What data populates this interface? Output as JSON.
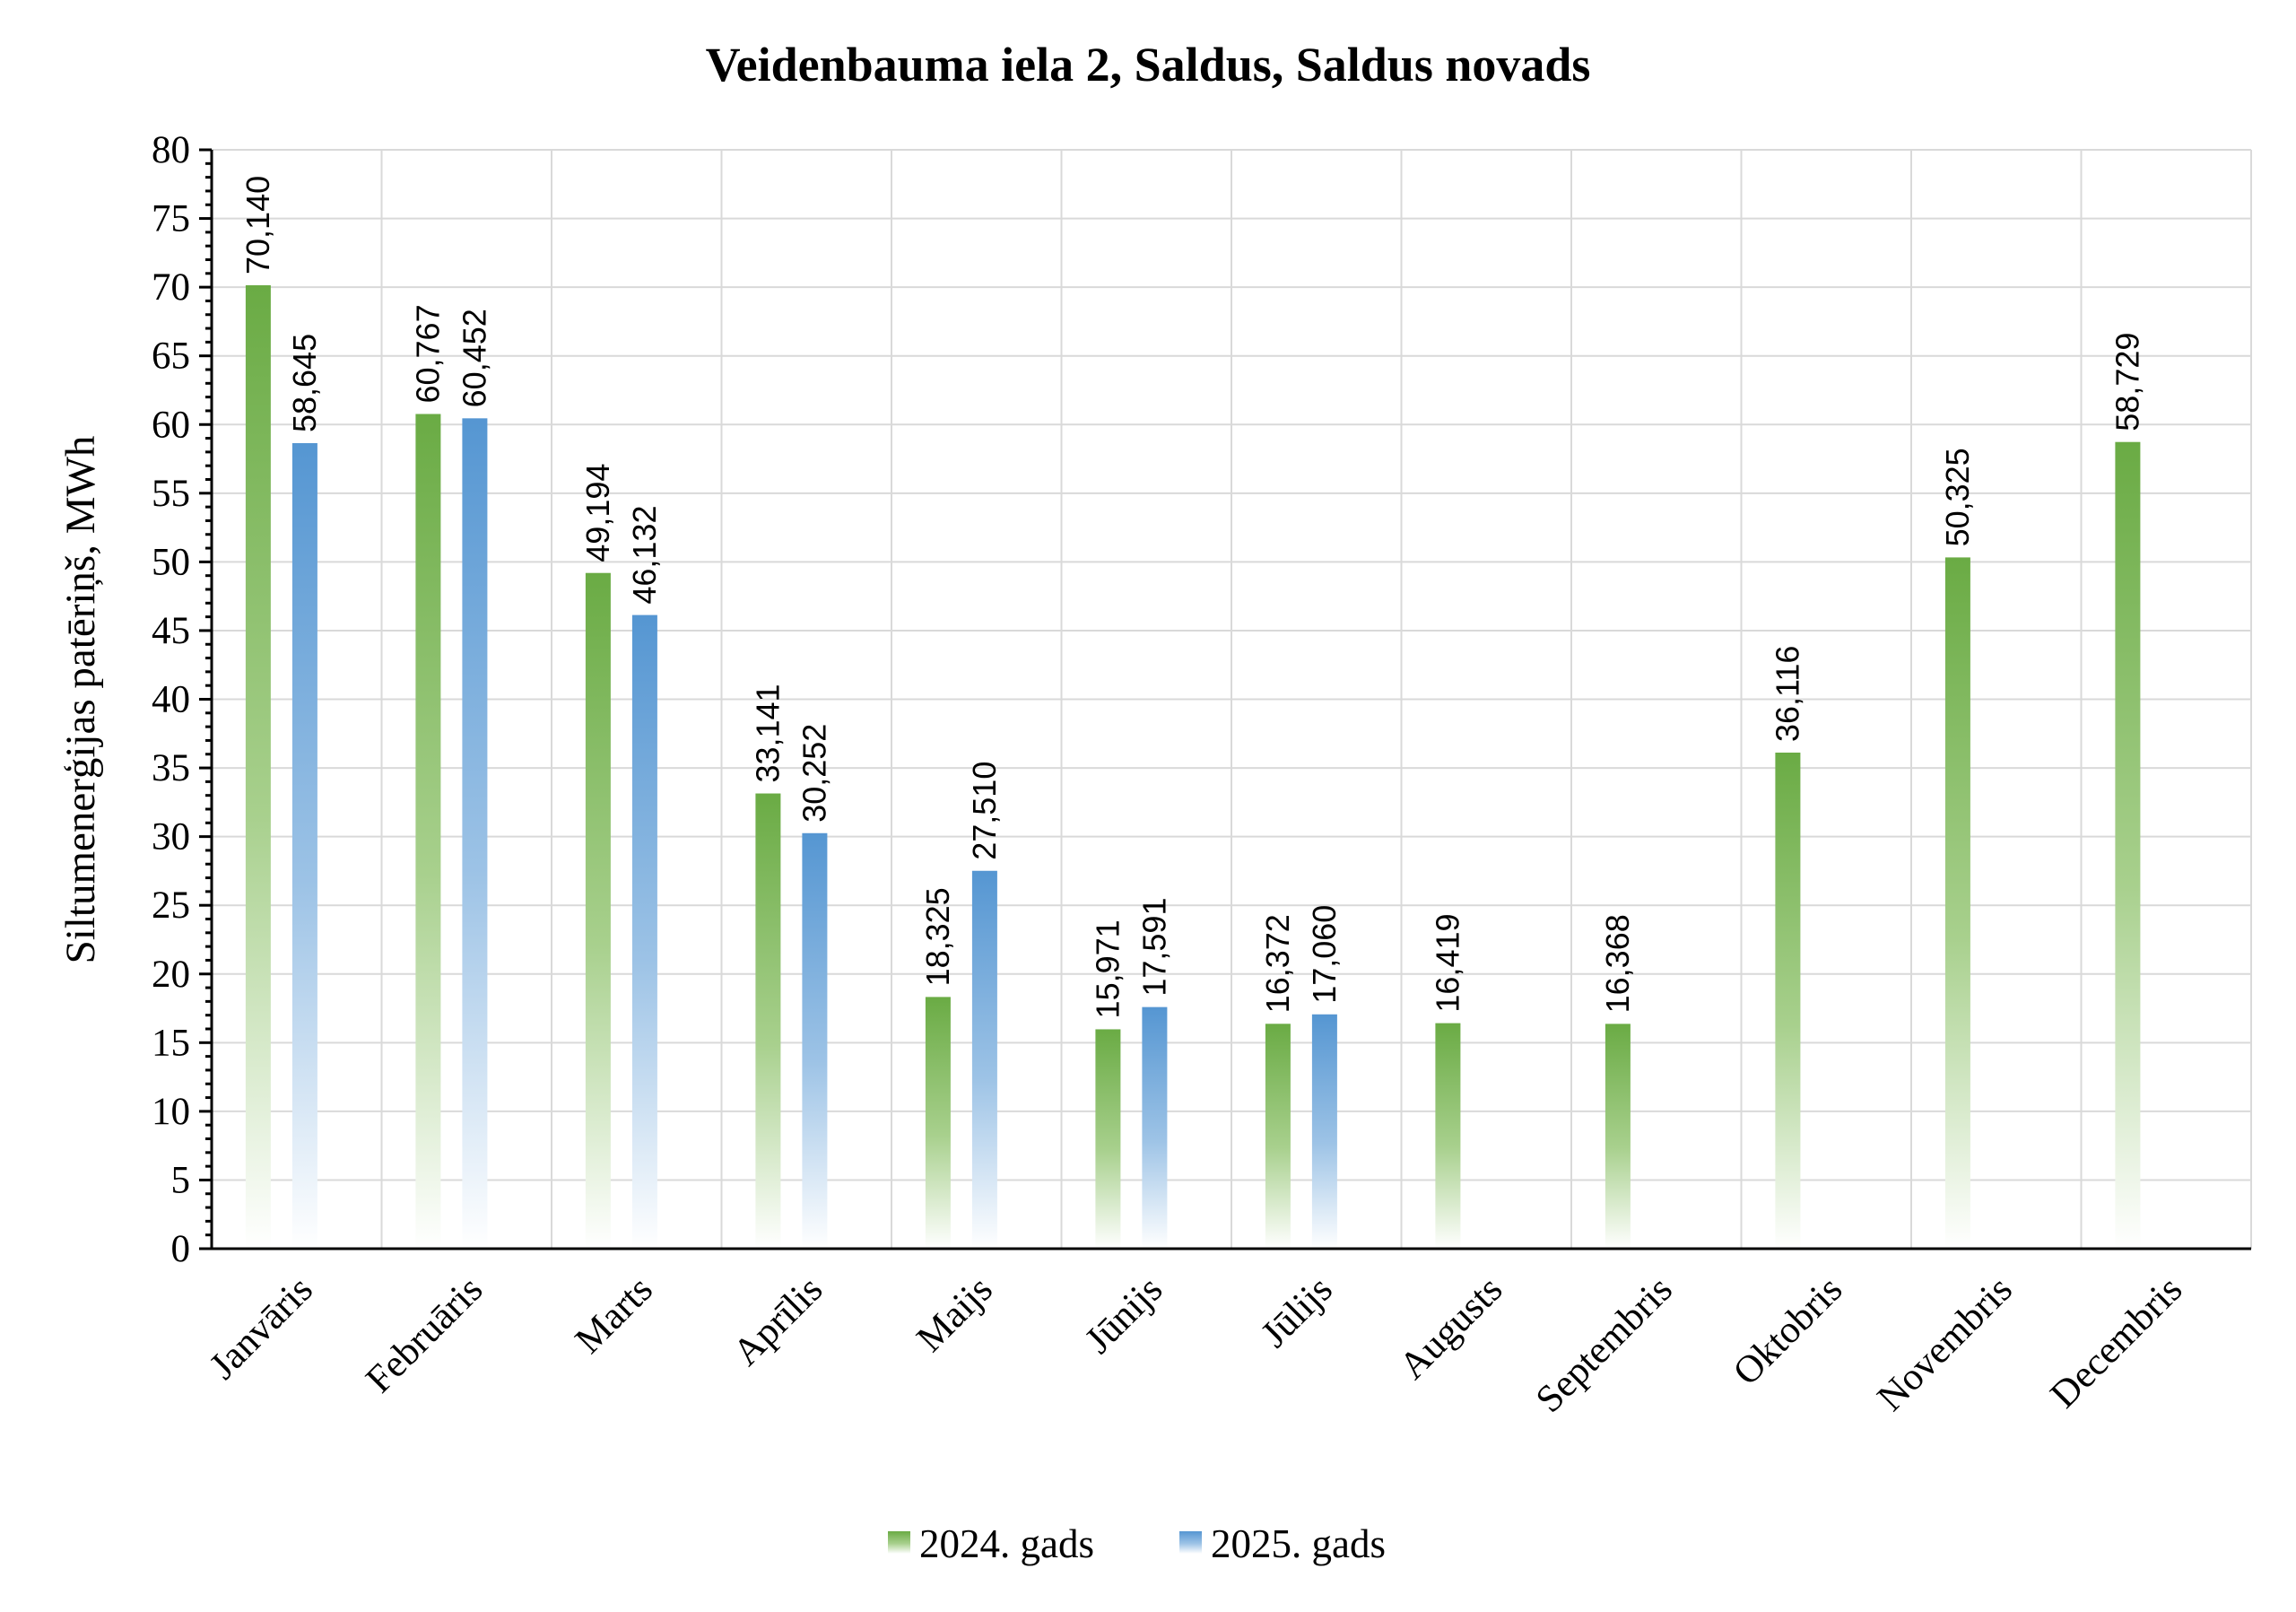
{
  "chart_data": {
    "type": "bar",
    "title": "Veidenbauma iela 2, Saldus, Saldus novads",
    "ylabel": "Siltumenerģijas patēriņš, MWh",
    "xlabel": "",
    "ylim": [
      0,
      80
    ],
    "yticks": [
      0,
      5,
      10,
      15,
      20,
      25,
      30,
      35,
      40,
      45,
      50,
      55,
      60,
      65,
      70,
      75,
      80
    ],
    "categories": [
      "Janvāris",
      "Februāris",
      "Marts",
      "Aprīlis",
      "Maijs",
      "Jūnijs",
      "Jūlijs",
      "Augusts",
      "Septembris",
      "Oktobris",
      "Novembris",
      "Decembris"
    ],
    "series": [
      {
        "name": "2024. gads",
        "color": "#70ad47",
        "values": [
          70.14,
          60.767,
          49.194,
          33.141,
          18.325,
          15.971,
          16.372,
          16.419,
          16.368,
          36.116,
          50.325,
          58.729
        ],
        "labels": [
          "70,140",
          "60,767",
          "49,194",
          "33,141",
          "18,325",
          "15,971",
          "16,372",
          "16,419",
          "16,368",
          "36,116",
          "50,325",
          "58,729"
        ]
      },
      {
        "name": "2025. gads",
        "color": "#5b9bd5",
        "values": [
          58.645,
          60.452,
          46.132,
          30.252,
          27.51,
          17.591,
          17.06,
          null,
          null,
          null,
          null,
          null
        ],
        "labels": [
          "58,645",
          "60,452",
          "46,132",
          "30,252",
          "27,510",
          "17,591",
          "17,060",
          null,
          null,
          null,
          null,
          null
        ]
      }
    ],
    "grid": true,
    "legend": "bottom-center"
  }
}
